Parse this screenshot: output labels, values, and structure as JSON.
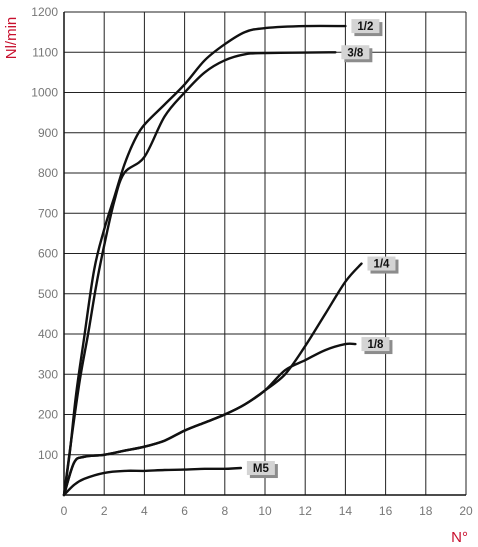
{
  "chart_data": {
    "type": "line",
    "ylabel": "Nl/min",
    "xlabel": "N°",
    "xlim": [
      0,
      20
    ],
    "ylim": [
      0,
      1200
    ],
    "x_ticks": [
      0,
      2,
      4,
      6,
      8,
      10,
      12,
      14,
      16,
      18,
      20
    ],
    "y_ticks": [
      100,
      200,
      300,
      400,
      500,
      600,
      700,
      800,
      900,
      1000,
      1100,
      1200
    ],
    "grid": true,
    "series": [
      {
        "name": "1/2",
        "points": [
          [
            0,
            0
          ],
          [
            0.3,
            110
          ],
          [
            0.6,
            250
          ],
          [
            1.0,
            390
          ],
          [
            1.5,
            560
          ],
          [
            2.0,
            660
          ],
          [
            2.5,
            740
          ],
          [
            3.0,
            820
          ],
          [
            3.5,
            880
          ],
          [
            4.0,
            920
          ],
          [
            5.0,
            970
          ],
          [
            6.0,
            1020
          ],
          [
            7.0,
            1080
          ],
          [
            8.0,
            1120
          ],
          [
            9.0,
            1150
          ],
          [
            10.0,
            1160
          ],
          [
            12.0,
            1165
          ],
          [
            14.0,
            1165
          ]
        ],
        "label_at": [
          14.0,
          1165
        ]
      },
      {
        "name": "3/8",
        "points": [
          [
            0,
            0
          ],
          [
            0.4,
            150
          ],
          [
            0.8,
            290
          ],
          [
            1.2,
            400
          ],
          [
            1.6,
            520
          ],
          [
            2.0,
            620
          ],
          [
            2.5,
            730
          ],
          [
            3.0,
            800
          ],
          [
            4.0,
            840
          ],
          [
            5.0,
            940
          ],
          [
            6.0,
            1000
          ],
          [
            7.0,
            1050
          ],
          [
            8.0,
            1080
          ],
          [
            9.0,
            1095
          ],
          [
            10.0,
            1098
          ],
          [
            13.5,
            1100
          ]
        ],
        "label_at": [
          13.5,
          1100
        ]
      },
      {
        "name": "1/4",
        "points": [
          [
            0,
            0
          ],
          [
            0.5,
            80
          ],
          [
            1.0,
            95
          ],
          [
            2.0,
            100
          ],
          [
            3.0,
            110
          ],
          [
            4.0,
            120
          ],
          [
            5.0,
            135
          ],
          [
            6.0,
            160
          ],
          [
            7.0,
            180
          ],
          [
            8.0,
            200
          ],
          [
            9.0,
            225
          ],
          [
            10.0,
            260
          ],
          [
            11.0,
            300
          ],
          [
            12.0,
            370
          ],
          [
            13.0,
            450
          ],
          [
            14.0,
            530
          ],
          [
            14.8,
            575
          ]
        ],
        "label_at": [
          14.8,
          575
        ]
      },
      {
        "name": "1/8",
        "points": [
          [
            0,
            0
          ],
          [
            0.5,
            80
          ],
          [
            1.0,
            95
          ],
          [
            2.0,
            100
          ],
          [
            3.0,
            110
          ],
          [
            4.0,
            120
          ],
          [
            5.0,
            135
          ],
          [
            6.0,
            160
          ],
          [
            7.0,
            180
          ],
          [
            8.0,
            200
          ],
          [
            9.0,
            225
          ],
          [
            10.0,
            260
          ],
          [
            11.0,
            310
          ],
          [
            12.0,
            335
          ],
          [
            13.0,
            360
          ],
          [
            14.0,
            375
          ],
          [
            14.5,
            375
          ]
        ],
        "label_at": [
          14.5,
          375
        ]
      },
      {
        "name": "M5",
        "points": [
          [
            0,
            0
          ],
          [
            0.5,
            25
          ],
          [
            1.0,
            40
          ],
          [
            2.0,
            55
          ],
          [
            3.0,
            60
          ],
          [
            4.0,
            60
          ],
          [
            5.0,
            62
          ],
          [
            6.0,
            63
          ],
          [
            7.0,
            65
          ],
          [
            8.0,
            65
          ],
          [
            8.8,
            67
          ]
        ],
        "label_at": [
          8.8,
          67
        ]
      }
    ]
  }
}
